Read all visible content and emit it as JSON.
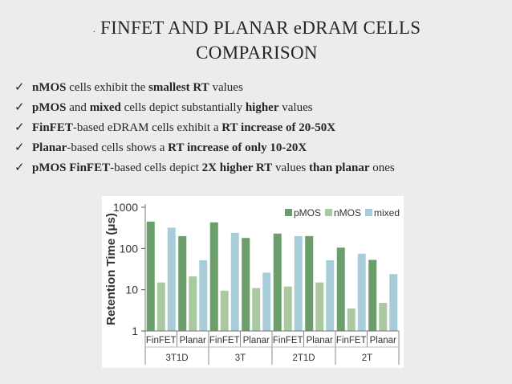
{
  "slide": {
    "title_bullet": ".",
    "title_line1": "FINFET AND PLANAR eDRAM CELLS",
    "title_line2": "COMPARISON",
    "check_glyph": "✓",
    "bullets": [
      {
        "parts": [
          {
            "t": "nMOS",
            "b": true
          },
          {
            "t": " cells exhibit the ",
            "b": false
          },
          {
            "t": "smallest RT",
            "b": true
          },
          {
            "t": " values",
            "b": false
          }
        ]
      },
      {
        "parts": [
          {
            "t": "pMOS",
            "b": true
          },
          {
            "t": " and ",
            "b": false
          },
          {
            "t": "mixed",
            "b": true
          },
          {
            "t": " cells depict substantially ",
            "b": false
          },
          {
            "t": "higher",
            "b": true
          },
          {
            "t": " values",
            "b": false
          }
        ]
      },
      {
        "parts": [
          {
            "t": "FinFET",
            "b": true
          },
          {
            "t": "-based eDRAM cells exhibit a ",
            "b": false
          },
          {
            "t": "RT increase of 20-50X",
            "b": true
          }
        ]
      },
      {
        "parts": [
          {
            "t": "Planar",
            "b": true
          },
          {
            "t": "-based cells shows a ",
            "b": false
          },
          {
            "t": "RT increase of only 10-20X",
            "b": true
          }
        ]
      },
      {
        "parts": [
          {
            "t": "pMOS FinFET",
            "b": true
          },
          {
            "t": "-based cells depict ",
            "b": false
          },
          {
            "t": "2X higher RT",
            "b": true
          },
          {
            "t": " values ",
            "b": false
          },
          {
            "t": "than planar",
            "b": true
          },
          {
            "t": " ones",
            "b": false
          }
        ]
      }
    ]
  },
  "chart_data": {
    "type": "bar",
    "ylabel": "Retention Time (μs)",
    "yscale": "log",
    "ylim": [
      1,
      1000
    ],
    "yticks": [
      "1",
      "10",
      "100",
      "1000"
    ],
    "ytick_values": [
      1,
      10,
      100,
      1000
    ],
    "groups": [
      "3T1D",
      "3T",
      "2T1D",
      "2T"
    ],
    "categories": [
      "FinFET",
      "Planar",
      "FinFET",
      "Planar",
      "FinFET",
      "Planar",
      "FinFET",
      "Planar"
    ],
    "legend_position": "top-right",
    "grid": false,
    "series": [
      {
        "name": "pMOS",
        "color": "#6b9e6b",
        "values": [
          450,
          200,
          430,
          180,
          230,
          200,
          105,
          53
        ]
      },
      {
        "name": "nMOS",
        "color": "#aac9a0",
        "values": [
          15,
          21,
          9.5,
          11,
          12,
          15,
          3.5,
          4.8
        ]
      },
      {
        "name": "mixed",
        "color": "#a9cdd8",
        "values": [
          320,
          52,
          240,
          26,
          200,
          52,
          75,
          24
        ]
      }
    ]
  }
}
